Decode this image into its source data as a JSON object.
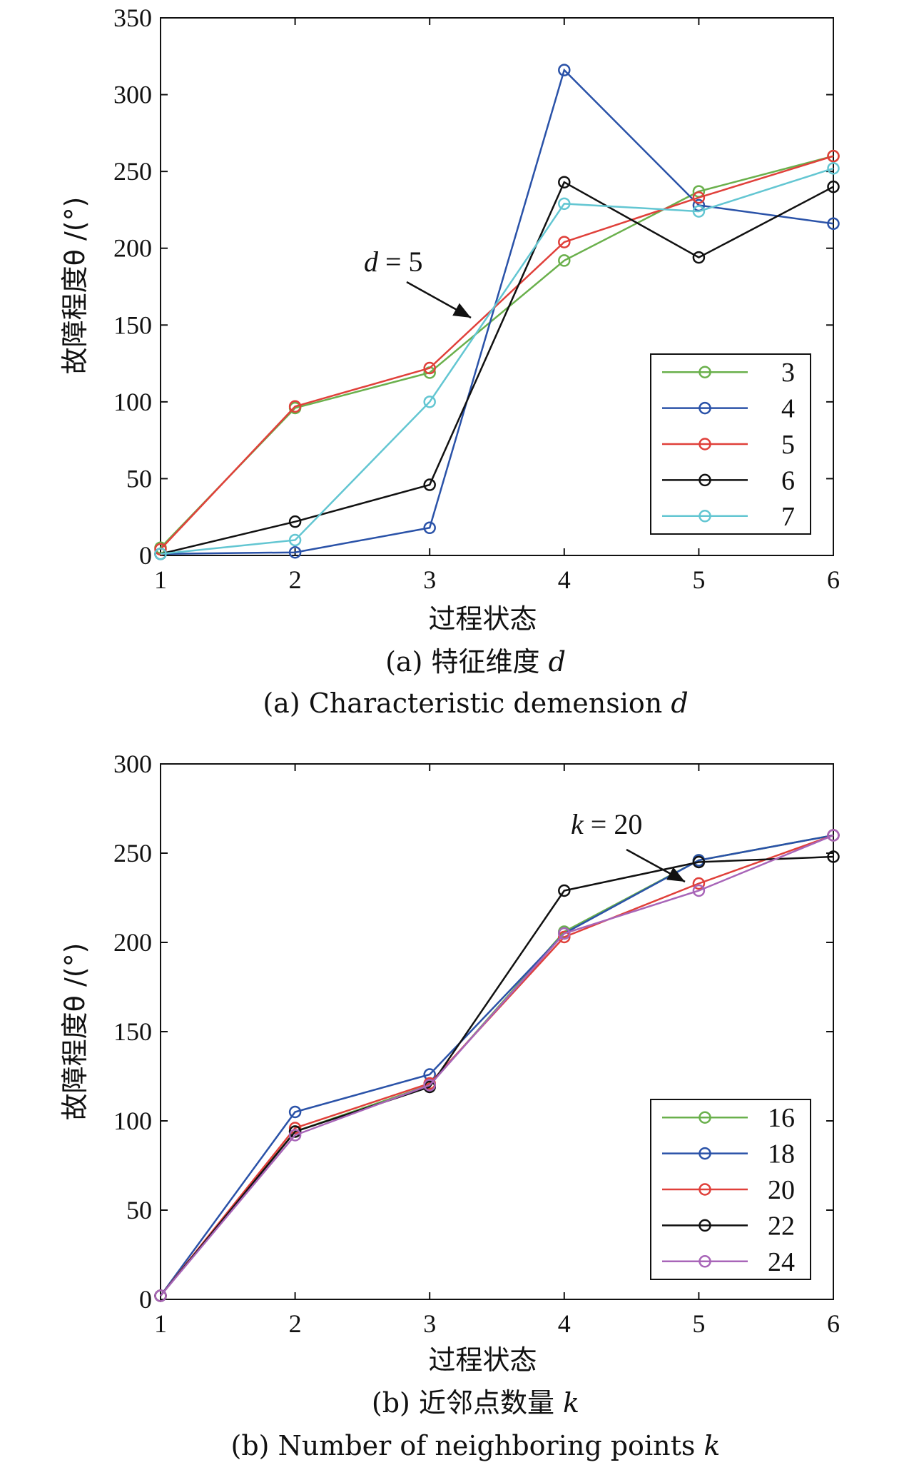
{
  "chart_data": [
    {
      "type": "line",
      "x": [
        1,
        2,
        3,
        4,
        5,
        6
      ],
      "ylim": [
        0,
        350
      ],
      "ylabel": "故障程度θ /(°)",
      "xlabel": "过程状态",
      "caption_cn": "(a) 特征维度 d",
      "caption_en": "(a) Characteristic demension d",
      "annotation": "d = 5",
      "legend_position": "right",
      "series": [
        {
          "name": "3",
          "color": "#6ab04c",
          "values": [
            5,
            96,
            119,
            192,
            237,
            260
          ]
        },
        {
          "name": "4",
          "color": "#2a52a8",
          "values": [
            1,
            2,
            18,
            316,
            228,
            216
          ]
        },
        {
          "name": "5",
          "color": "#e0403a",
          "values": [
            4,
            97,
            122,
            204,
            233,
            260
          ]
        },
        {
          "name": "6",
          "color": "#111111",
          "values": [
            1,
            22,
            46,
            243,
            194,
            240
          ]
        },
        {
          "name": "7",
          "color": "#63c6d2",
          "values": [
            1,
            10,
            100,
            229,
            224,
            252
          ]
        }
      ]
    },
    {
      "type": "line",
      "x": [
        1,
        2,
        3,
        4,
        5,
        6
      ],
      "ylim": [
        0,
        300
      ],
      "ylabel": "故障程度θ /(°)",
      "xlabel": "过程状态",
      "caption_cn": "(b) 近邻点数量 k",
      "caption_en": "(b) Number of neighboring points k",
      "annotation": "k = 20",
      "legend_position": "bottom-right",
      "series": [
        {
          "name": "16",
          "color": "#6ab04c",
          "values": [
            2,
            94,
            120,
            206,
            246,
            260
          ]
        },
        {
          "name": "18",
          "color": "#2a52a8",
          "values": [
            2,
            105,
            126,
            205,
            246,
            260
          ]
        },
        {
          "name": "20",
          "color": "#e0403a",
          "values": [
            2,
            96,
            121,
            203,
            233,
            260
          ]
        },
        {
          "name": "22",
          "color": "#111111",
          "values": [
            2,
            94,
            119,
            229,
            245,
            248
          ]
        },
        {
          "name": "24",
          "color": "#a865b8",
          "values": [
            2,
            92,
            120,
            205,
            229,
            260
          ]
        }
      ]
    }
  ]
}
